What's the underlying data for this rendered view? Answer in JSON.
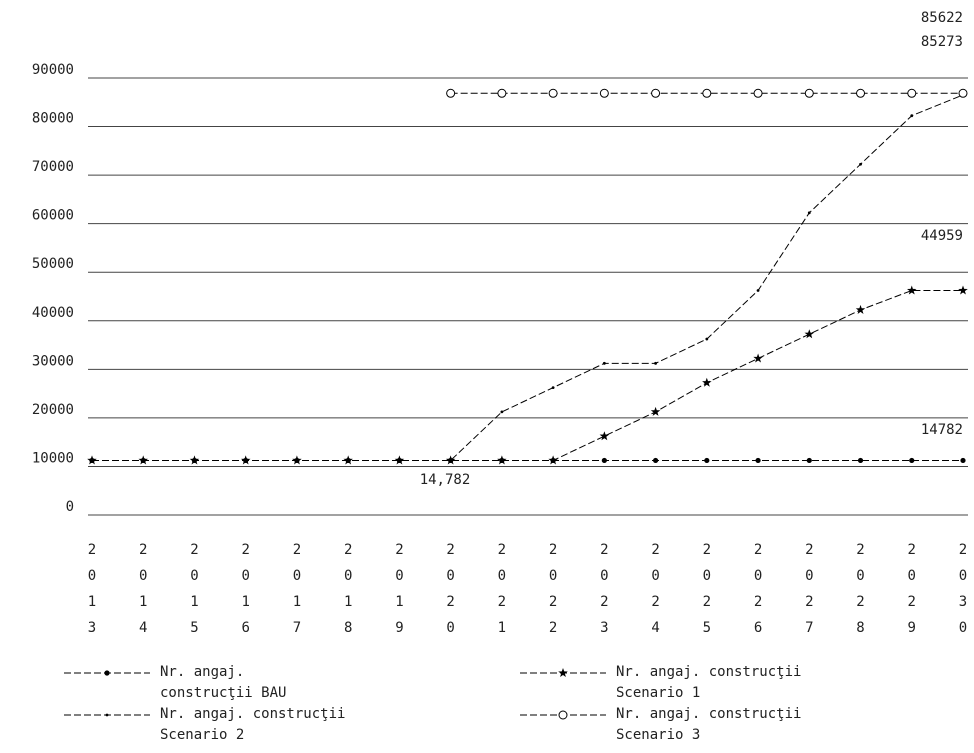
{
  "chart_data": {
    "type": "line",
    "categories": [
      "2013",
      "2014",
      "2015",
      "2016",
      "2017",
      "2018",
      "2019",
      "2020",
      "2021",
      "2022",
      "2023",
      "2024",
      "2025",
      "2026",
      "2027",
      "2028",
      "2029",
      "2030"
    ],
    "series": [
      {
        "name": "Nr. angaj. construcţii BAU",
        "color": "#000000",
        "marker": "dot",
        "values": [
          10000,
          10000,
          10000,
          10000,
          10000,
          10000,
          10000,
          10000,
          10000,
          10000,
          10000,
          10000,
          10000,
          10000,
          10000,
          10000,
          10000,
          10000
        ]
      },
      {
        "name": "Nr. angaj. construcţii Scenario 1",
        "color": "#000000",
        "marker": "star",
        "values": [
          10000,
          10000,
          10000,
          10000,
          10000,
          10000,
          10000,
          10000,
          10000,
          10000,
          15000,
          20000,
          26000,
          31000,
          36000,
          41000,
          45000,
          45000
        ]
      },
      {
        "name": "Nr. angaj. construcţii Scenario 2",
        "color": "#000000",
        "marker": "point",
        "values": [
          10000,
          10000,
          10000,
          10000,
          10000,
          10000,
          10000,
          10000,
          20000,
          25000,
          30000,
          30000,
          35000,
          45000,
          61000,
          71000,
          81000,
          85273
        ]
      },
      {
        "name": "Nr. angaj. construcţii Scenario 3",
        "color": "#000000",
        "marker": "circle",
        "values": [
          null,
          null,
          null,
          null,
          null,
          null,
          null,
          85622,
          85622,
          85622,
          85622,
          85622,
          85622,
          85622,
          85622,
          85622,
          85622,
          85622
        ]
      }
    ],
    "annotations": [
      "85622",
      "85273",
      "44959",
      "14782",
      "14,782"
    ],
    "ylim": [
      0,
      90000
    ],
    "yticks": [
      0,
      10000,
      20000,
      30000,
      40000,
      50000,
      60000,
      70000,
      80000,
      90000
    ],
    "grid": true
  }
}
